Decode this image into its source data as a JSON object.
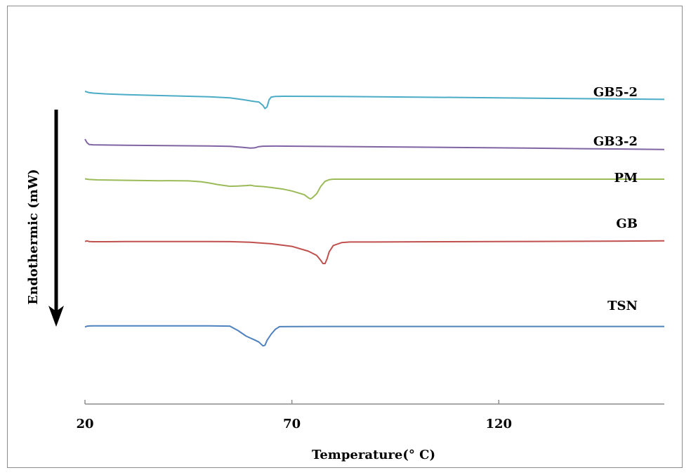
{
  "chart_data": {
    "type": "line",
    "title": "",
    "xlabel": "Temperature(° C)",
    "ylabel": "Endothermic (mW)",
    "xlim": [
      20,
      160
    ],
    "x_ticks": [
      20,
      70,
      120
    ],
    "y_ticks_shown": false,
    "grid": false,
    "legend": "none",
    "arrow": "downward",
    "series": [
      {
        "name": "GB5-2",
        "color": "#4bacc6",
        "points": [
          [
            20,
            -5.0
          ],
          [
            21,
            -3.2
          ],
          [
            22,
            -2.5
          ],
          [
            25,
            -1.4
          ],
          [
            30,
            -0.3
          ],
          [
            40,
            1.2
          ],
          [
            50,
            2.8
          ],
          [
            55,
            4.2
          ],
          [
            58,
            6.6
          ],
          [
            61,
            9.5
          ],
          [
            62,
            10.1
          ],
          [
            63,
            15
          ],
          [
            63.5,
            19.5
          ],
          [
            64,
            17
          ],
          [
            64.5,
            7
          ],
          [
            65,
            3.1
          ],
          [
            66,
            2.2
          ],
          [
            68,
            2.0
          ],
          [
            80,
            2.2
          ],
          [
            100,
            3.2
          ],
          [
            120,
            4.2
          ],
          [
            140,
            5.4
          ],
          [
            160,
            6.4
          ]
        ]
      },
      {
        "name": "GB3-2",
        "color": "#8064a2",
        "points": [
          [
            20,
            -7.0
          ],
          [
            20.5,
            -2
          ],
          [
            21,
            0.6
          ],
          [
            22,
            1.1
          ],
          [
            30,
            1.8
          ],
          [
            40,
            2.2
          ],
          [
            50,
            2.7
          ],
          [
            55,
            3.3
          ],
          [
            58,
            4.6
          ],
          [
            60,
            5.8
          ],
          [
            61,
            5.4
          ],
          [
            62,
            3.7
          ],
          [
            63,
            3.1
          ],
          [
            66,
            2.9
          ],
          [
            80,
            3.5
          ],
          [
            100,
            4.4
          ],
          [
            120,
            5.4
          ],
          [
            140,
            6.6
          ],
          [
            160,
            7.7
          ]
        ]
      },
      {
        "name": "PM",
        "color": "#9bbb59",
        "points": [
          [
            20,
            -0.5
          ],
          [
            21,
            0.4
          ],
          [
            23,
            1.0
          ],
          [
            30,
            1.6
          ],
          [
            35,
            2.0
          ],
          [
            38,
            2.2
          ],
          [
            40,
            2.1
          ],
          [
            45,
            2.4
          ],
          [
            48,
            3.6
          ],
          [
            50,
            5.4
          ],
          [
            52,
            7.6
          ],
          [
            55,
            10.1
          ],
          [
            57,
            9.8
          ],
          [
            59,
            9.1
          ],
          [
            60,
            8.6
          ],
          [
            61,
            9.7
          ],
          [
            63,
            10.5
          ],
          [
            65,
            11.9
          ],
          [
            68,
            14.3
          ],
          [
            70,
            16.8
          ],
          [
            72,
            20.3
          ],
          [
            73,
            22.1
          ],
          [
            74,
            26.6
          ],
          [
            74.5,
            28.1
          ],
          [
            75,
            26.2
          ],
          [
            76,
            20.6
          ],
          [
            77,
            10.1
          ],
          [
            78,
            3.2
          ],
          [
            79,
            0.7
          ],
          [
            80,
            0.0
          ],
          [
            100,
            0.0
          ],
          [
            120,
            0.0
          ],
          [
            140,
            0.0
          ],
          [
            160,
            0.0
          ]
        ]
      },
      {
        "name": "GB",
        "color": "#c0504d",
        "points": [
          [
            20,
            -0.4
          ],
          [
            20.5,
            -1.2
          ],
          [
            21,
            -0.3
          ],
          [
            22,
            0.0
          ],
          [
            25,
            0.0
          ],
          [
            30,
            -0.2
          ],
          [
            40,
            -0.2
          ],
          [
            45,
            -0.3
          ],
          [
            50,
            -0.3
          ],
          [
            55,
            -0.1
          ],
          [
            60,
            0.8
          ],
          [
            65,
            2.9
          ],
          [
            70,
            6.6
          ],
          [
            74,
            13.5
          ],
          [
            76,
            19.5
          ],
          [
            77,
            26.7
          ],
          [
            77.5,
            31.0
          ],
          [
            78,
            31.1
          ],
          [
            78.5,
            24.5
          ],
          [
            79,
            14.5
          ],
          [
            80,
            5.4
          ],
          [
            82,
            1.3
          ],
          [
            84,
            0.4
          ],
          [
            90,
            0.4
          ],
          [
            100,
            0.1
          ],
          [
            120,
            -0.2
          ],
          [
            140,
            -0.6
          ],
          [
            160,
            -1.2
          ]
        ]
      },
      {
        "name": "TSN",
        "color": "#4f81bd",
        "points": [
          [
            20,
            0.4
          ],
          [
            20.5,
            -0.8
          ],
          [
            21,
            -1.1
          ],
          [
            22,
            -1.3
          ],
          [
            30,
            -1.2
          ],
          [
            40,
            -1.2
          ],
          [
            50,
            -1.2
          ],
          [
            55,
            -0.9
          ],
          [
            57,
            5.5
          ],
          [
            59,
            13.5
          ],
          [
            61,
            18.8
          ],
          [
            62,
            21.7
          ],
          [
            63,
            27.2
          ],
          [
            63.5,
            26.4
          ],
          [
            64,
            19.3
          ],
          [
            65,
            10.5
          ],
          [
            66,
            3.7
          ],
          [
            67,
            -0.1
          ],
          [
            70,
            -0.3
          ],
          [
            80,
            -0.4
          ],
          [
            100,
            -0.4
          ],
          [
            120,
            -0.4
          ],
          [
            140,
            -0.4
          ],
          [
            160,
            -0.4
          ]
        ]
      }
    ]
  }
}
